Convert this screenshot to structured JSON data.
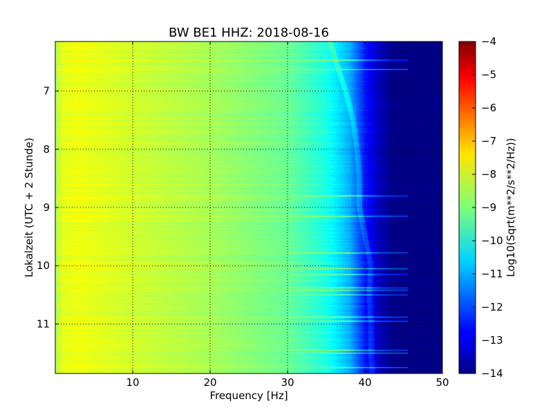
{
  "chart_data": {
    "type": "heatmap",
    "title": "BW BE1 HHZ: 2018-08-16",
    "xlabel": "Frequency [Hz]",
    "ylabel": "Lokalzeit (UTC + 2 Stunde)",
    "xlim": [
      0,
      50
    ],
    "ylim": [
      6.15,
      11.85
    ],
    "y_inverted": true,
    "x_ticks": [
      10,
      20,
      30,
      40,
      50
    ],
    "y_ticks": [
      7,
      8,
      9,
      10,
      11
    ],
    "grid": true,
    "colormap": "jet",
    "colorbar": {
      "label": "Log10(Sqrt(m**2/s**2/Hz))",
      "range": [
        -14,
        -4
      ],
      "ticks": [
        -4,
        -5,
        -6,
        -7,
        -8,
        -9,
        -10,
        -11,
        -12,
        -13,
        -14
      ]
    },
    "spectrum_profile": {
      "frequency_hz": [
        0,
        1,
        3,
        10,
        20,
        30,
        35,
        38,
        40,
        42,
        44,
        46,
        50
      ],
      "log10_psd": [
        -8.5,
        -8.0,
        -7.9,
        -8.2,
        -8.6,
        -9.2,
        -10.0,
        -11.0,
        -12.5,
        -13.5,
        -14,
        -14,
        -14
      ]
    },
    "bright_bands_local_hour": [
      6.47,
      6.63,
      8.8,
      9.15,
      9.78,
      10.05,
      10.15,
      10.38,
      10.42,
      10.5,
      10.88,
      10.95,
      11.45,
      11.5,
      11.75
    ],
    "wandering_line_hz": {
      "hour": [
        6.15,
        6.6,
        7.0,
        7.5,
        8.0,
        8.5,
        9.0,
        9.5,
        10.0,
        10.5,
        11.0,
        11.5,
        11.85
      ],
      "freq": [
        35.5,
        36.5,
        37.5,
        38.5,
        39.0,
        39.3,
        39.3,
        40.0,
        40.8,
        40.6,
        40.8,
        40.8,
        41.0
      ]
    }
  }
}
